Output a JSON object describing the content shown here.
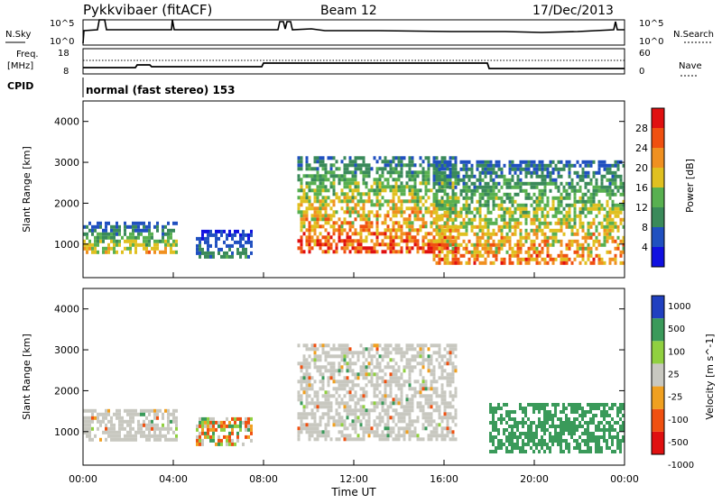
{
  "header": {
    "station": "Pykkvibaer (fitACF)",
    "beam": "Beam 12",
    "date": "17/Dec/2013"
  },
  "status_panels": {
    "nsky_label": "N.Sky",
    "nsky_ticks": [
      "10^5",
      "10^0"
    ],
    "nsearch_label": "N.Search",
    "nsearch_ticks": [
      "10^5",
      "10^0"
    ],
    "freq_label": "Freq.",
    "freq_unit": "[MHz]",
    "freq_ticks": [
      "18",
      "8"
    ],
    "nave_label": "Nave",
    "nave_ticks": [
      "60",
      "0"
    ],
    "cpid_label": "CPID",
    "cpid_text": "normal (fast stereo) 153"
  },
  "colors": {
    "power": [
      "#1010e0",
      "#2050c0",
      "#3a8a5a",
      "#58b050",
      "#e0c020",
      "#f09020",
      "#f05010",
      "#e01010"
    ],
    "velocity": [
      "#e01010",
      "#f05010",
      "#f0a020",
      "#c8c8c0",
      "#90d040",
      "#3a9a5a",
      "#2040c0"
    ],
    "ground_scatter": "#c0c0b8"
  },
  "chart_data": [
    {
      "type": "heatmap",
      "title": "",
      "quantity": "Power",
      "xlabel": "",
      "ylabel": "Slant Range [km]",
      "xlim_hours": [
        0,
        24
      ],
      "ylim_km": [
        180,
        4500
      ],
      "x_ticks": [
        "00:00",
        "04:00",
        "08:00",
        "12:00",
        "16:00",
        "20:00",
        "00:00"
      ],
      "y_ticks": [
        1000,
        2000,
        3000,
        4000
      ],
      "colorbar": {
        "label": "Power [dB]",
        "ticks": [
          "4",
          "8",
          "12",
          "16",
          "20",
          "24",
          "28"
        ],
        "range": [
          0,
          30
        ]
      },
      "echo_regions": [
        {
          "t_start": 0.0,
          "t_end": 4.2,
          "r_min": 800,
          "r_max": 1550,
          "peak_db": 22
        },
        {
          "t_start": 5.0,
          "t_end": 7.5,
          "r_min": 650,
          "r_max": 1350,
          "peak_db": 12
        },
        {
          "t_start": 9.5,
          "t_end": 16.5,
          "r_min": 800,
          "r_max": 3150,
          "peak_db": 30
        },
        {
          "t_start": 15.5,
          "t_end": 24.0,
          "r_min": 550,
          "r_max": 3050,
          "peak_db": 26
        }
      ]
    },
    {
      "type": "heatmap",
      "title": "",
      "quantity": "Velocity",
      "xlabel": "Time UT",
      "ylabel": "Slant Range [km]",
      "xlim_hours": [
        0,
        24
      ],
      "ylim_km": [
        180,
        4500
      ],
      "x_ticks": [
        "00:00",
        "04:00",
        "08:00",
        "12:00",
        "16:00",
        "20:00",
        "00:00"
      ],
      "y_ticks": [
        1000,
        2000,
        3000,
        4000
      ],
      "colorbar": {
        "label": "Velocity [m s^-1]",
        "ticks": [
          "1000",
          "500",
          "100",
          "25",
          "-25",
          "-100",
          "-500",
          "-1000"
        ]
      },
      "echo_regions": [
        {
          "t_start": 0.0,
          "t_end": 4.2,
          "r_min": 800,
          "r_max": 1550,
          "velocity": 0
        },
        {
          "t_start": 5.0,
          "t_end": 7.5,
          "r_min": 650,
          "r_max": 1350,
          "velocity": -50
        },
        {
          "t_start": 9.5,
          "t_end": 16.5,
          "r_min": 800,
          "r_max": 3150,
          "velocity": 0
        },
        {
          "t_start": 18.0,
          "t_end": 24.0,
          "r_min": 550,
          "r_max": 1700,
          "velocity": 300
        }
      ]
    }
  ]
}
